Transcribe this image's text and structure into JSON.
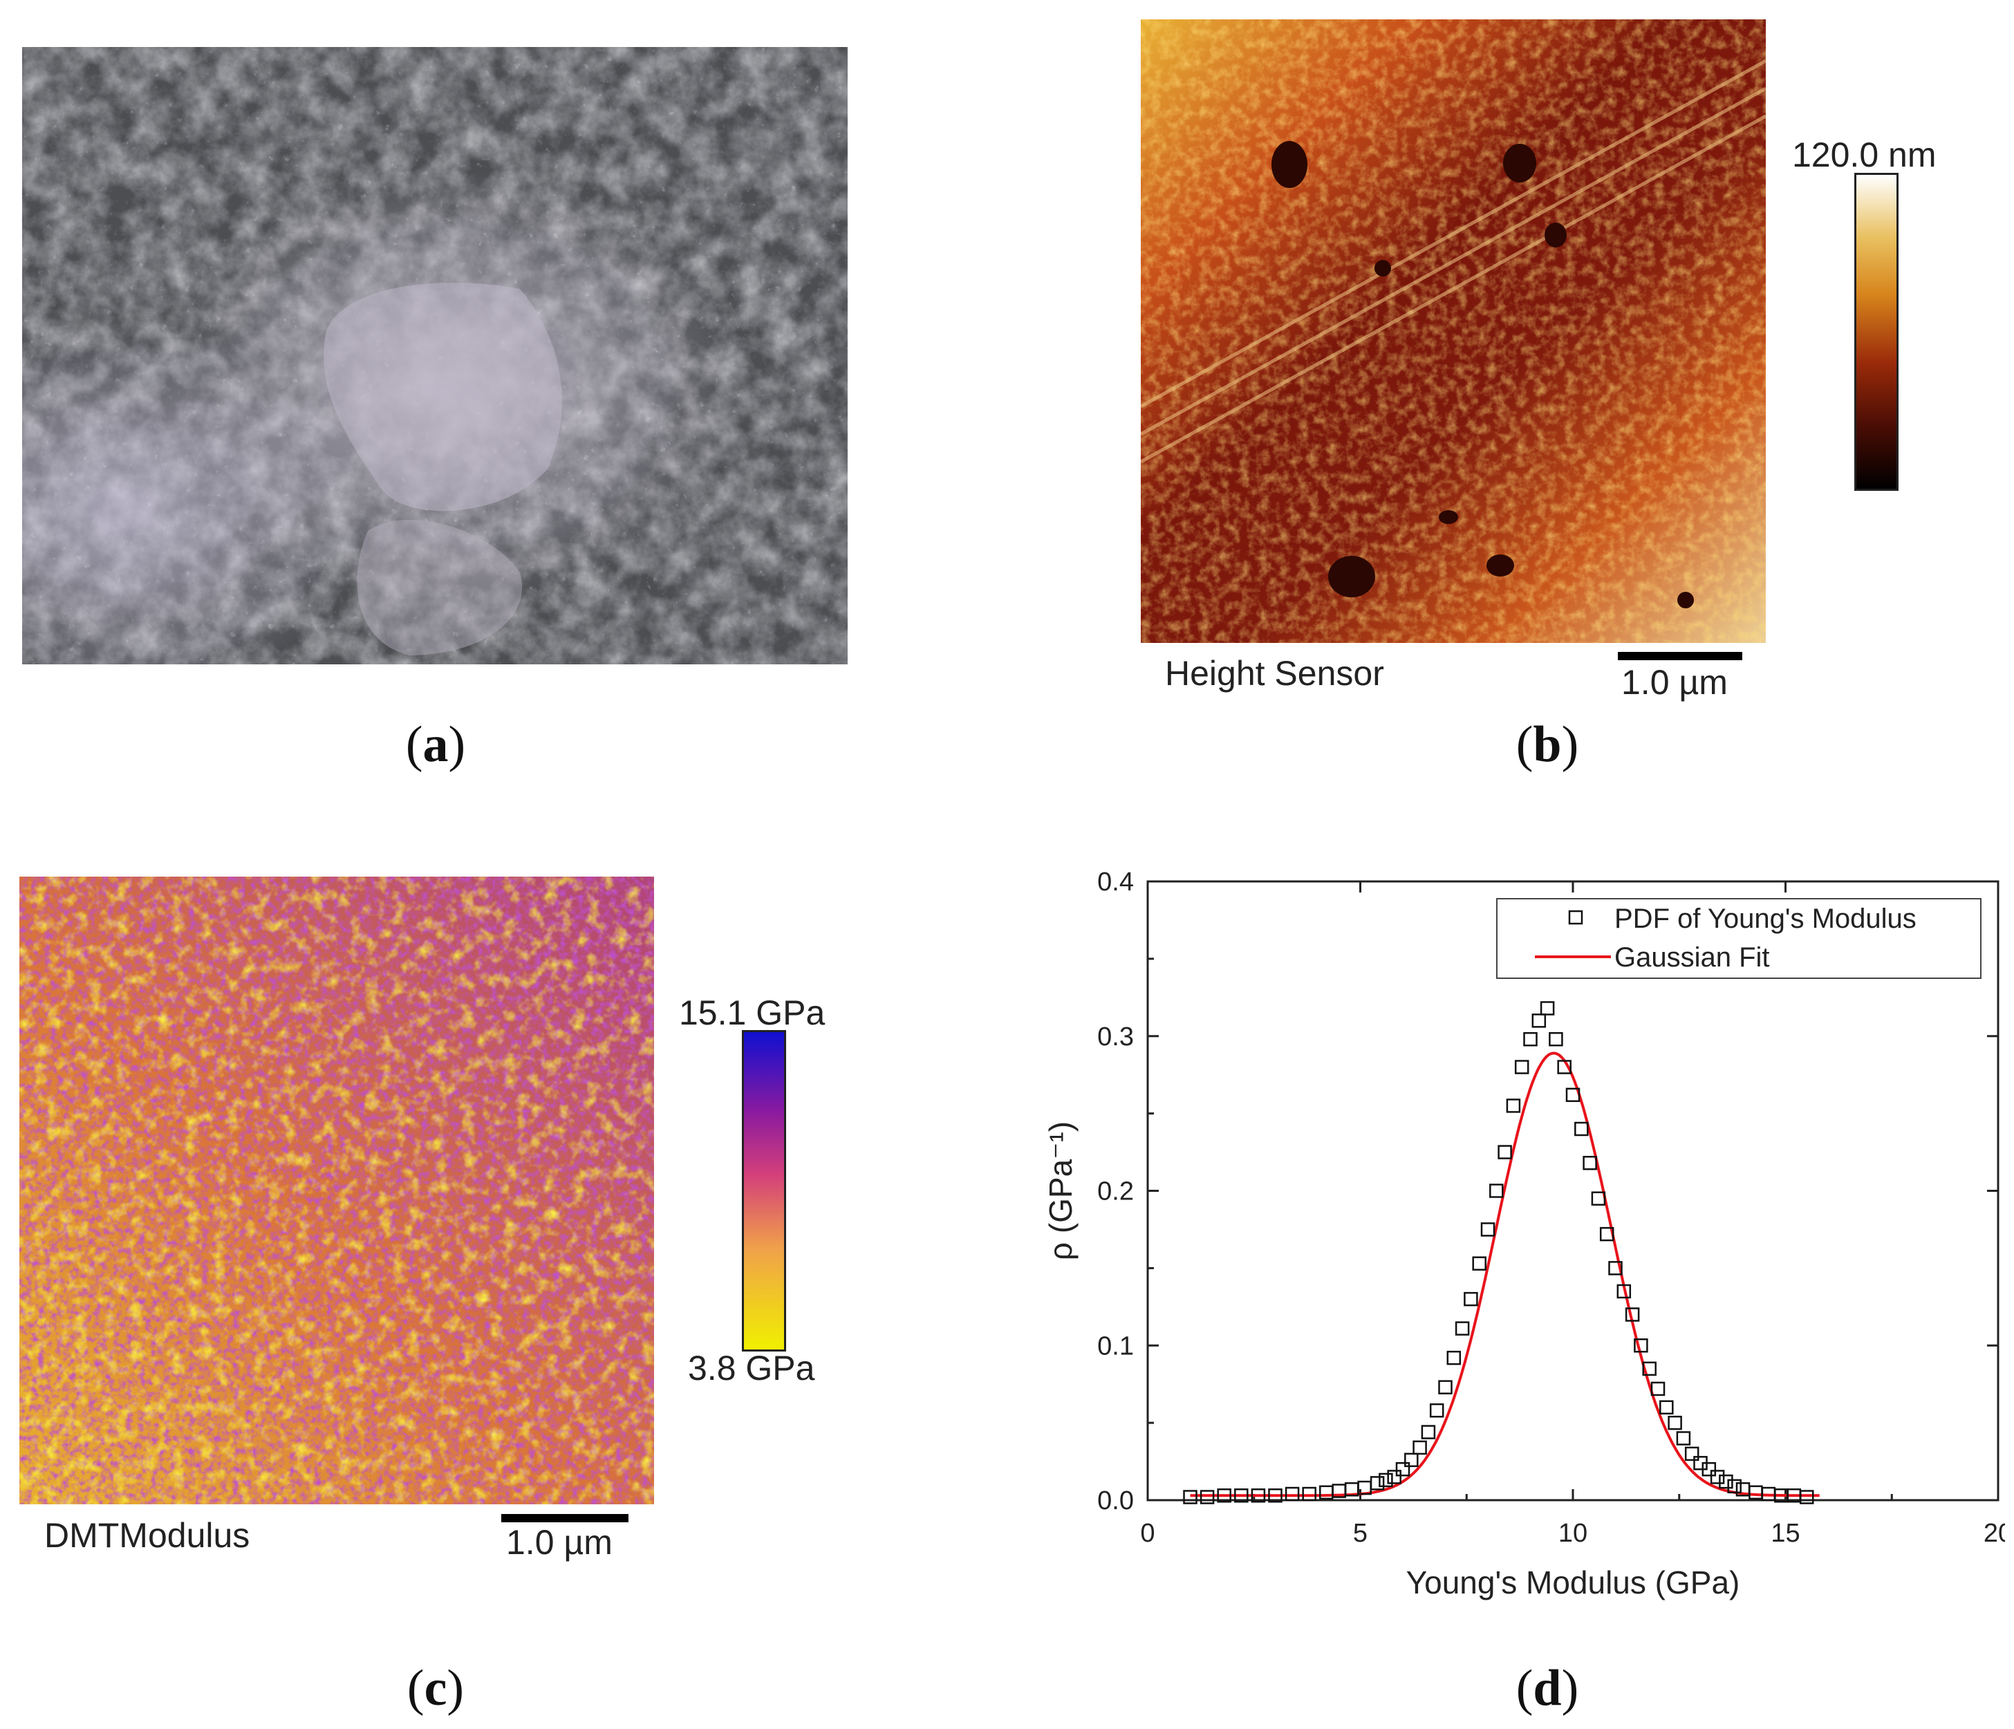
{
  "panels": {
    "a": {
      "label": "a"
    },
    "b": {
      "label": "b",
      "caption": "Height Sensor",
      "scalebar": "1.0 µm",
      "colorbar_max": "120.0 nm"
    },
    "c": {
      "label": "c",
      "caption": "DMTModulus",
      "scalebar": "1.0 µm",
      "colorbar_max": "15.1 GPa",
      "colorbar_min": "3.8 GPa"
    },
    "d": {
      "label": "d"
    }
  },
  "colors": {
    "gaussian_fit": "#e8141b",
    "markers": "#111111",
    "height_map": [
      "#000000",
      "#4a0d05",
      "#9a2a0a",
      "#d7851c",
      "#e9c060",
      "#ffffff"
    ],
    "modulus_map": [
      "#f0f000",
      "#f0a04a",
      "#d4407a",
      "#8a1aa0",
      "#1010d0"
    ]
  },
  "chart_data": {
    "type": "scatter",
    "xlabel": "Young's Modulus (GPa)",
    "ylabel": "ρ (GPa⁻¹)",
    "xlim": [
      0,
      20
    ],
    "ylim": [
      0,
      0.4
    ],
    "xticks": [
      "0",
      "5",
      "10",
      "15",
      "20"
    ],
    "yticks": [
      "0.0",
      "0.1",
      "0.2",
      "0.3",
      "0.4"
    ],
    "legend_position": "top-right",
    "series": [
      {
        "name": "PDF of Young's Modulus",
        "kind": "markers",
        "x": [
          1.0,
          1.4,
          1.8,
          2.2,
          2.6,
          3.0,
          3.4,
          3.8,
          4.2,
          4.5,
          4.8,
          5.1,
          5.4,
          5.6,
          5.8,
          6.0,
          6.2,
          6.4,
          6.6,
          6.8,
          7.0,
          7.2,
          7.4,
          7.6,
          7.8,
          8.0,
          8.2,
          8.4,
          8.6,
          8.8,
          9.0,
          9.2,
          9.4,
          9.6,
          9.8,
          10.0,
          10.2,
          10.4,
          10.6,
          10.8,
          11.0,
          11.2,
          11.4,
          11.6,
          11.8,
          12.0,
          12.2,
          12.4,
          12.6,
          12.8,
          13.0,
          13.2,
          13.4,
          13.6,
          13.8,
          14.0,
          14.3,
          14.6,
          14.9,
          15.2,
          15.5
        ],
        "y": [
          0.002,
          0.002,
          0.003,
          0.003,
          0.003,
          0.003,
          0.004,
          0.004,
          0.005,
          0.006,
          0.007,
          0.008,
          0.011,
          0.013,
          0.015,
          0.02,
          0.026,
          0.034,
          0.044,
          0.058,
          0.073,
          0.092,
          0.111,
          0.13,
          0.153,
          0.175,
          0.2,
          0.225,
          0.255,
          0.28,
          0.298,
          0.31,
          0.318,
          0.298,
          0.28,
          0.262,
          0.24,
          0.218,
          0.195,
          0.172,
          0.15,
          0.135,
          0.12,
          0.1,
          0.085,
          0.072,
          0.06,
          0.05,
          0.04,
          0.03,
          0.024,
          0.02,
          0.015,
          0.012,
          0.009,
          0.007,
          0.005,
          0.004,
          0.003,
          0.003,
          0.002
        ]
      },
      {
        "name": "Gaussian Fit",
        "kind": "line",
        "mean": 9.55,
        "sigma": 1.35,
        "peak": 0.286,
        "x_range": [
          1.0,
          15.8
        ]
      }
    ]
  }
}
